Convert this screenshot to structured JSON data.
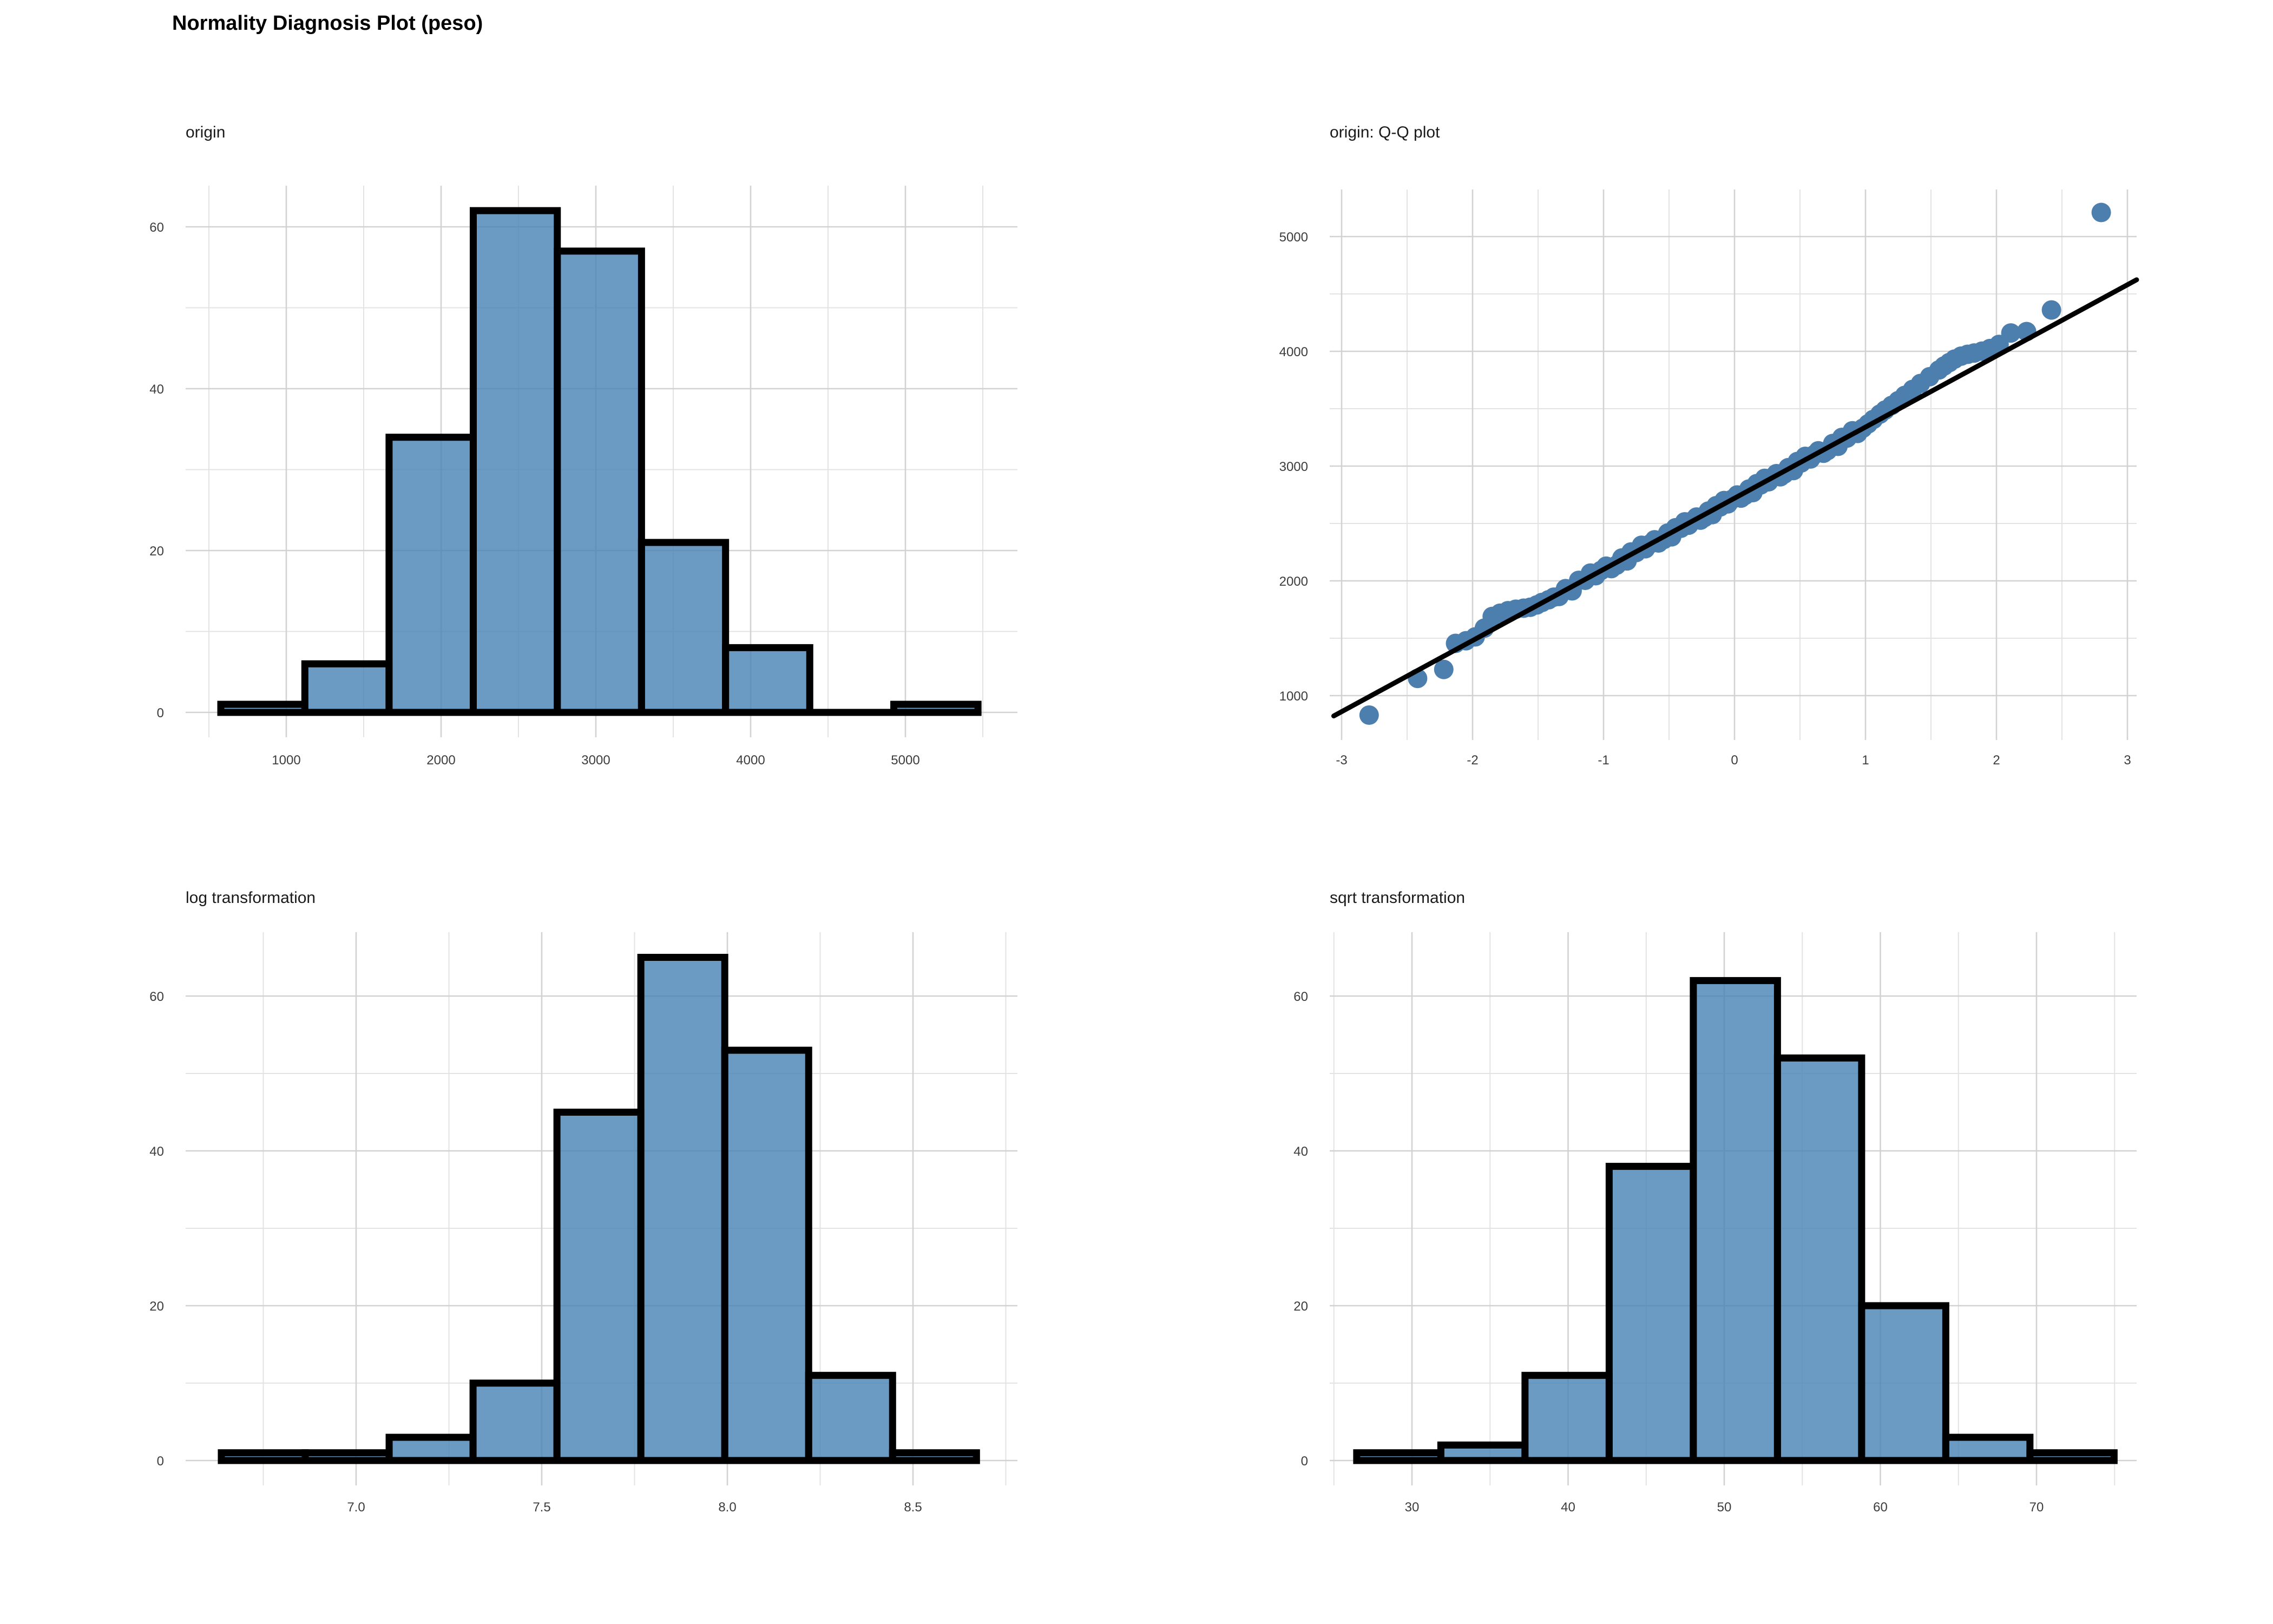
{
  "title": "Normality Diagnosis Plot (peso)",
  "colors": {
    "bar_fill": "#4682B4",
    "bar_fill_opacity": 0.8,
    "bar_stroke": "#000000",
    "point_color": "#4c7fae",
    "ref_line_color": "#000000",
    "grid_major": "#d2d2d2",
    "grid_minor": "#e3e3e3",
    "tick_text": "#3c3c3c",
    "background": "#ffffff"
  },
  "chart_data": [
    {
      "id": "origin",
      "type": "bar",
      "title": "origin",
      "xlabel": "",
      "ylabel": "",
      "grid": true,
      "legend": false,
      "bin_edges": [
        577,
        1120,
        1664,
        2208,
        2751,
        3295,
        3838,
        4382,
        4925,
        5469
      ],
      "counts": [
        1,
        6,
        34,
        62,
        57,
        21,
        8,
        0,
        1
      ],
      "x_ticks": [
        1000,
        2000,
        3000,
        4000,
        5000
      ],
      "x_tick_labels": [
        "1000",
        "2000",
        "3000",
        "4000",
        "5000"
      ],
      "x_minor": [
        500,
        1500,
        2500,
        3500,
        4500,
        5500
      ],
      "y_ticks": [
        0,
        20,
        40,
        60
      ],
      "y_tick_labels": [
        "0",
        "20",
        "40",
        "60"
      ],
      "y_minor": [
        10,
        30,
        50
      ],
      "xlim": [
        350,
        5724
      ],
      "ylim": [
        -3.1,
        65.1
      ]
    },
    {
      "id": "qq",
      "type": "scatter",
      "title": "origin: Q-Q plot",
      "xlabel": "",
      "ylabel": "",
      "grid": true,
      "legend": false,
      "points": [
        [
          -2.79,
          830
        ],
        [
          -2.42,
          1150
        ],
        [
          -2.22,
          1228
        ],
        [
          -2.13,
          1455
        ],
        [
          -2.05,
          1478
        ],
        [
          -1.98,
          1512
        ],
        [
          -1.91,
          1588
        ],
        [
          -1.85,
          1690
        ],
        [
          -1.79,
          1718
        ],
        [
          -1.73,
          1740
        ],
        [
          -1.67,
          1753
        ],
        [
          -1.61,
          1762
        ],
        [
          -1.56,
          1770
        ],
        [
          -1.51,
          1790
        ],
        [
          -1.47,
          1812
        ],
        [
          -1.42,
          1835
        ],
        [
          -1.38,
          1858
        ],
        [
          -1.34,
          1864
        ],
        [
          -1.29,
          1932
        ],
        [
          -1.24,
          1913
        ],
        [
          -1.19,
          2004
        ],
        [
          -1.14,
          2005
        ],
        [
          -1.1,
          2068
        ],
        [
          -1.06,
          2045
        ],
        [
          -1.02,
          2090
        ],
        [
          -0.98,
          2128
        ],
        [
          -0.94,
          2107
        ],
        [
          -0.9,
          2137
        ],
        [
          -0.86,
          2199
        ],
        [
          -0.82,
          2174
        ],
        [
          -0.79,
          2252
        ],
        [
          -0.75,
          2247
        ],
        [
          -0.71,
          2310
        ],
        [
          -0.68,
          2280
        ],
        [
          -0.64,
          2325
        ],
        [
          -0.61,
          2358
        ],
        [
          -0.58,
          2330
        ],
        [
          -0.54,
          2360
        ],
        [
          -0.51,
          2416
        ],
        [
          -0.48,
          2384
        ],
        [
          -0.45,
          2463
        ],
        [
          -0.41,
          2458
        ],
        [
          -0.38,
          2514
        ],
        [
          -0.35,
          2485
        ],
        [
          -0.32,
          2524
        ],
        [
          -0.29,
          2556
        ],
        [
          -0.26,
          2529
        ],
        [
          -0.23,
          2552
        ],
        [
          -0.2,
          2608
        ],
        [
          -0.17,
          2577
        ],
        [
          -0.14,
          2655
        ],
        [
          -0.11,
          2644
        ],
        [
          -0.08,
          2700
        ],
        [
          -0.05,
          2671
        ],
        [
          -0.02,
          2710
        ],
        [
          0.02,
          2748
        ],
        [
          0.05,
          2721
        ],
        [
          0.08,
          2745
        ],
        [
          0.11,
          2800
        ],
        [
          0.14,
          2769
        ],
        [
          0.17,
          2847
        ],
        [
          0.2,
          2836
        ],
        [
          0.23,
          2893
        ],
        [
          0.26,
          2863
        ],
        [
          0.29,
          2902
        ],
        [
          0.32,
          2934
        ],
        [
          0.35,
          2907
        ],
        [
          0.38,
          2931
        ],
        [
          0.41,
          2986
        ],
        [
          0.45,
          2961
        ],
        [
          0.48,
          3040
        ],
        [
          0.51,
          3028
        ],
        [
          0.54,
          3085
        ],
        [
          0.58,
          3062
        ],
        [
          0.61,
          3100
        ],
        [
          0.64,
          3133
        ],
        [
          0.68,
          3112
        ],
        [
          0.71,
          3135
        ],
        [
          0.75,
          3197
        ],
        [
          0.79,
          3172
        ],
        [
          0.82,
          3250
        ],
        [
          0.86,
          3245
        ],
        [
          0.9,
          3308
        ],
        [
          0.94,
          3285
        ],
        [
          0.98,
          3330
        ],
        [
          1.02,
          3368
        ],
        [
          1.06,
          3407
        ],
        [
          1.11,
          3453
        ],
        [
          1.15,
          3488
        ],
        [
          1.2,
          3529
        ],
        [
          1.25,
          3570
        ],
        [
          1.3,
          3616
        ],
        [
          1.36,
          3668
        ],
        [
          1.42,
          3720
        ],
        [
          1.49,
          3779
        ],
        [
          1.56,
          3837
        ],
        [
          1.6,
          3872
        ],
        [
          1.64,
          3902
        ],
        [
          1.68,
          3932
        ],
        [
          1.73,
          3958
        ],
        [
          1.78,
          3974
        ],
        [
          1.83,
          3985
        ],
        [
          1.89,
          4002
        ],
        [
          1.95,
          4024
        ],
        [
          2.02,
          4060
        ],
        [
          2.11,
          4160
        ],
        [
          2.23,
          4172
        ],
        [
          2.42,
          4360
        ],
        [
          2.8,
          5210
        ]
      ],
      "ref_line": {
        "intercept": 2720,
        "slope": 620,
        "x_start": -3.06,
        "x_end": 3.07
      },
      "x_ticks": [
        -3,
        -2,
        -1,
        0,
        1,
        2,
        3
      ],
      "x_tick_labels": [
        "-3",
        "-2",
        "-1",
        "0",
        "1",
        "2",
        "3"
      ],
      "x_minor": [
        -2.5,
        -1.5,
        -0.5,
        0.5,
        1.5,
        2.5
      ],
      "y_ticks": [
        1000,
        2000,
        3000,
        4000,
        5000
      ],
      "y_tick_labels": [
        "1000",
        "2000",
        "3000",
        "4000",
        "5000"
      ],
      "y_minor": [
        1500,
        2500,
        3500,
        4500
      ],
      "xlim": [
        -3.08,
        3.08
      ],
      "ylim": [
        613,
        5410
      ]
    },
    {
      "id": "log",
      "type": "bar",
      "title": "log transformation",
      "xlabel": "",
      "ylabel": "",
      "grid": true,
      "legend": false,
      "bin_edges": [
        6.637,
        6.863,
        7.089,
        7.315,
        7.541,
        7.767,
        7.993,
        8.219,
        8.445,
        8.671
      ],
      "counts": [
        1,
        1,
        3,
        10,
        45,
        65,
        53,
        11,
        1
      ],
      "x_ticks": [
        7.0,
        7.5,
        8.0,
        8.5
      ],
      "x_tick_labels": [
        "7.0",
        "7.5",
        "8.0",
        "8.5"
      ],
      "x_minor": [
        6.75,
        7.25,
        7.75,
        8.25,
        8.75
      ],
      "y_ticks": [
        0,
        20,
        40,
        60
      ],
      "y_tick_labels": [
        "0",
        "20",
        "40",
        "60"
      ],
      "y_minor": [
        10,
        30,
        50
      ],
      "xlim": [
        6.54,
        8.78
      ],
      "ylim": [
        -3.25,
        68.25
      ]
    },
    {
      "id": "sqrt",
      "type": "bar",
      "title": "sqrt transformation",
      "xlabel": "",
      "ylabel": "",
      "grid": true,
      "legend": false,
      "bin_edges": [
        26.46,
        31.85,
        37.24,
        42.63,
        48.02,
        53.41,
        58.8,
        64.19,
        69.58,
        74.97
      ],
      "counts": [
        1,
        2,
        11,
        38,
        62,
        52,
        20,
        3,
        1
      ],
      "x_ticks": [
        30,
        40,
        50,
        60,
        70
      ],
      "x_tick_labels": [
        "30",
        "40",
        "50",
        "60",
        "70"
      ],
      "x_minor": [
        25,
        35,
        45,
        55,
        65,
        75
      ],
      "y_ticks": [
        0,
        20,
        40,
        60
      ],
      "y_tick_labels": [
        "0",
        "20",
        "40",
        "60"
      ],
      "y_minor": [
        10,
        30,
        50
      ],
      "xlim": [
        24.7,
        76.4
      ],
      "ylim": [
        -3.25,
        68.25
      ]
    }
  ]
}
